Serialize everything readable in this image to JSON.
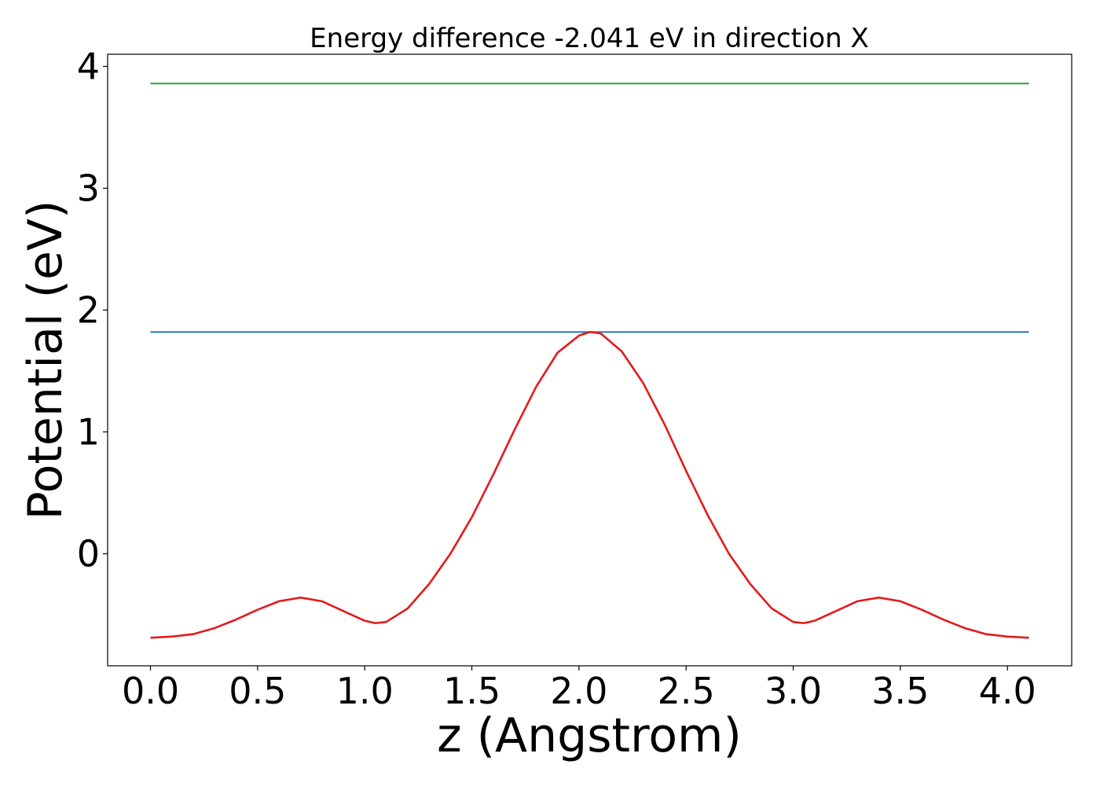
{
  "chart_data": {
    "type": "line",
    "title": "Energy difference -2.041 eV in direction X",
    "xlabel": "z (Angstrom)",
    "ylabel": "Potential (eV)",
    "xlim": [
      -0.2,
      4.3
    ],
    "ylim": [
      -0.92,
      4.1
    ],
    "xticks": [
      0.0,
      0.5,
      1.0,
      1.5,
      2.0,
      2.5,
      3.0,
      3.5,
      4.0
    ],
    "xtick_labels": [
      "0.0",
      "0.5",
      "1.0",
      "1.5",
      "2.0",
      "2.5",
      "3.0",
      "3.5",
      "4.0"
    ],
    "yticks": [
      0,
      1,
      2,
      3,
      4
    ],
    "ytick_labels": [
      "0",
      "1",
      "2",
      "3",
      "4"
    ],
    "grid": false,
    "legend": false,
    "series": [
      {
        "color": "#2ca02c",
        "x": [
          0.0,
          4.1
        ],
        "y": [
          3.86,
          3.86
        ]
      },
      {
        "color": "#1f77b4",
        "x": [
          0.0,
          4.1
        ],
        "y": [
          1.82,
          1.82
        ]
      },
      {
        "color": "#e41a1c",
        "x": [
          0.0,
          0.1,
          0.2,
          0.3,
          0.4,
          0.5,
          0.6,
          0.7,
          0.8,
          0.9,
          1.0,
          1.05,
          1.1,
          1.2,
          1.3,
          1.4,
          1.5,
          1.6,
          1.7,
          1.8,
          1.9,
          2.0,
          2.05,
          2.1,
          2.2,
          2.3,
          2.4,
          2.5,
          2.6,
          2.7,
          2.8,
          2.9,
          3.0,
          3.05,
          3.1,
          3.2,
          3.3,
          3.4,
          3.5,
          3.6,
          3.7,
          3.8,
          3.9,
          4.0,
          4.1
        ],
        "y": [
          -0.69,
          -0.68,
          -0.66,
          -0.61,
          -0.54,
          -0.46,
          -0.39,
          -0.36,
          -0.39,
          -0.47,
          -0.55,
          -0.57,
          -0.56,
          -0.45,
          -0.25,
          0.0,
          0.3,
          0.65,
          1.02,
          1.37,
          1.65,
          1.79,
          1.82,
          1.81,
          1.66,
          1.4,
          1.06,
          0.68,
          0.32,
          0.0,
          -0.25,
          -0.45,
          -0.56,
          -0.57,
          -0.55,
          -0.47,
          -0.39,
          -0.36,
          -0.39,
          -0.46,
          -0.54,
          -0.61,
          -0.66,
          -0.68,
          -0.69
        ]
      }
    ]
  }
}
